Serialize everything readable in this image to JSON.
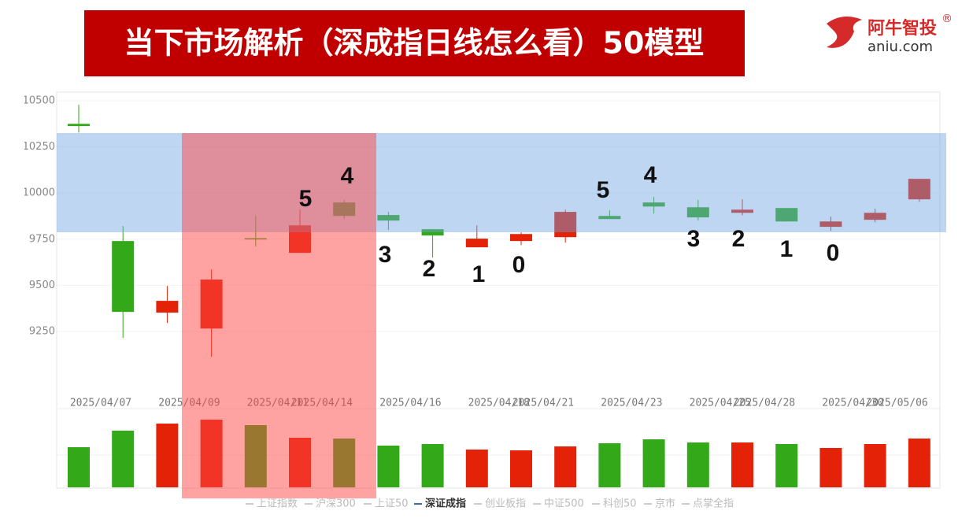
{
  "header": {
    "title": "当下市场解析（深成指日线怎么看）50模型",
    "logo": "阿牛智投",
    "logo_mark": "®",
    "site": "aniu.com"
  },
  "chart_data": {
    "type": "candlestick",
    "categories": [
      "2025/04/07",
      null,
      "2025/04/09",
      null,
      "2025/04/11",
      "2025/04/14",
      null,
      "2025/04/16",
      null,
      "2025/04/18",
      "2025/04/21",
      null,
      "2025/04/23",
      null,
      "2025/04/25",
      "2025/04/28",
      null,
      "2025/04/30",
      "2025/05/06",
      null
    ],
    "open": [
      10375,
      9740,
      9352,
      9266,
      9755,
      9676,
      9949,
      9881,
      9804,
      9706,
      9740,
      9761,
      9876,
      9949,
      9923,
      9893,
      9919,
      9817,
      9855,
      9966
    ],
    "close": [
      10363,
      9356,
      9416,
      9531,
      9750,
      9825,
      9876,
      9851,
      9770,
      9753,
      9778,
      9898,
      9859,
      9927,
      9868,
      9910,
      9846,
      9846,
      9893,
      10077
    ],
    "high": [
      10478,
      9821,
      9497,
      9586,
      9876,
      9910,
      9962,
      9898,
      9804,
      9825,
      9787,
      9910,
      9906,
      9979,
      9962,
      9966,
      9919,
      9872,
      9915,
      10077
    ],
    "low": [
      10328,
      9215,
      9296,
      9113,
      9710,
      9676,
      9859,
      9800,
      9650,
      9706,
      9718,
      9731,
      9859,
      9889,
      9851,
      9880,
      9846,
      9795,
      9842,
      9953
    ],
    "volume": [
      51,
      72,
      81,
      86,
      79,
      63,
      62,
      53,
      55,
      48,
      47,
      52,
      56,
      61,
      57,
      57,
      55,
      50,
      55,
      62
    ],
    "volume_ylim": [
      0,
      100
    ],
    "ylim": [
      9000,
      10550
    ],
    "yticks": [
      10500,
      10250,
      10000,
      9750,
      9500,
      9250
    ],
    "up_color": "#e42208",
    "down_color": "#33a91a",
    "grid": true,
    "annotations": [
      "5",
      "4",
      "3",
      "2",
      "1",
      "0",
      "5",
      "4",
      "3",
      "2",
      "1",
      "0"
    ],
    "legend": [
      "上证指数",
      "沪深300",
      "上证50",
      "深证成指",
      "创业板指",
      "中证500",
      "科创50",
      "京市",
      "点掌全指"
    ],
    "legend_active": 3
  }
}
